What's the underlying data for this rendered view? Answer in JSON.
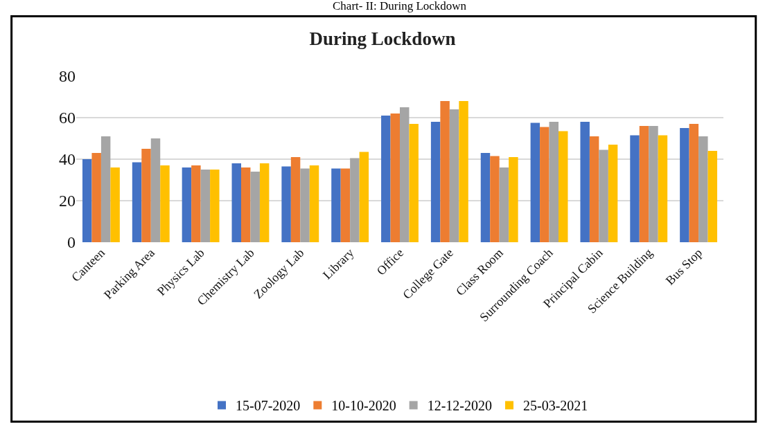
{
  "chart_data": {
    "type": "bar",
    "title": "During Lockdown",
    "annotations": [
      "Chart- II: During Lockdown"
    ],
    "categories": [
      "Canteen",
      "Parking Area",
      "Physics Lab",
      "Chemistry Lab",
      "Zoology Lab",
      "Library",
      "Office",
      "College Gate",
      "Class Room",
      "Surrounding Coach",
      "Principal Cabin",
      "Science Building",
      "Bus Stop"
    ],
    "series": [
      {
        "name": "15-07-2020",
        "color": "#4472c4",
        "values": [
          40,
          38.5,
          36,
          38,
          36.5,
          35.5,
          61,
          58,
          43,
          57.5,
          58,
          51.5,
          55
        ]
      },
      {
        "name": "10-10-2020",
        "color": "#ed7d31",
        "values": [
          43,
          45,
          37,
          36,
          41,
          35.5,
          62,
          68,
          41.5,
          55.5,
          51,
          56,
          57
        ]
      },
      {
        "name": "12-12-2020",
        "color": "#a5a5a5",
        "values": [
          51,
          50,
          35,
          34,
          35.5,
          40.5,
          65,
          64,
          36,
          58,
          44.5,
          56,
          51
        ]
      },
      {
        "name": "25-03-2021",
        "color": "#ffc000",
        "values": [
          36,
          37,
          35,
          38,
          37,
          43.5,
          57,
          68,
          41,
          53.5,
          47,
          51.5,
          44
        ]
      }
    ],
    "ylim": [
      0,
      80
    ],
    "yticks": [
      0,
      20,
      40,
      60,
      80
    ],
    "grid": "y",
    "legend": "bottom"
  }
}
